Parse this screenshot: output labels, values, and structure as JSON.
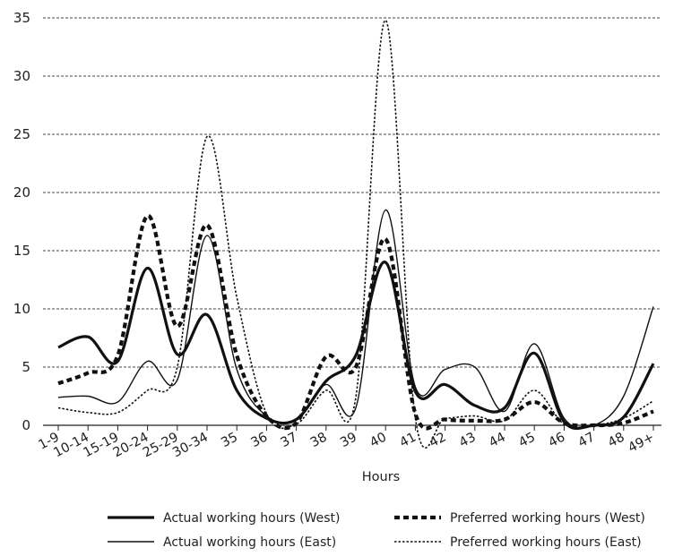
{
  "chart_data": {
    "type": "line",
    "title": "",
    "xlabel": "Hours",
    "ylabel": "",
    "ylim": [
      0,
      35
    ],
    "yticks": [
      "0",
      "5",
      "10",
      "15",
      "20",
      "25",
      "30",
      "35"
    ],
    "categories": [
      "1-9",
      "10-14",
      "15-19",
      "20-24",
      "25-29",
      "30-34",
      "35",
      "36",
      "37",
      "38",
      "39",
      "40",
      "41",
      "42",
      "43",
      "44",
      "45",
      "46",
      "47",
      "48",
      "49+"
    ],
    "grid": "horizontal dashed",
    "legend_position": "bottom",
    "series": [
      {
        "name": "Actual working hours (West)",
        "style": "thick-solid",
        "values": [
          6.7,
          7.6,
          5.5,
          13.5,
          6.1,
          9.5,
          3.0,
          0.6,
          0.5,
          3.8,
          6.0,
          14.0,
          2.9,
          3.5,
          1.7,
          1.5,
          6.2,
          0.3,
          0.0,
          0.7,
          5.3
        ]
      },
      {
        "name": "Actual working hours (East)",
        "style": "thin-solid",
        "values": [
          2.4,
          2.5,
          2.0,
          5.5,
          3.9,
          16.3,
          4.8,
          0.8,
          0.5,
          3.5,
          1.5,
          18.5,
          3.3,
          4.8,
          5.0,
          1.2,
          7.0,
          0.6,
          0.0,
          2.5,
          10.2
        ]
      },
      {
        "name": "Preferred working hours (West)",
        "style": "thick-dashed",
        "values": [
          3.6,
          4.5,
          6.0,
          18.0,
          8.5,
          17.2,
          6.0,
          0.8,
          0.2,
          5.9,
          5.0,
          16.0,
          1.0,
          0.5,
          0.4,
          0.5,
          2.0,
          0.2,
          0.0,
          0.2,
          1.2
        ]
      },
      {
        "name": "Preferred working hours (East)",
        "style": "thin-dotted",
        "values": [
          1.5,
          1.1,
          1.1,
          3.0,
          5.0,
          24.8,
          11.0,
          1.0,
          0.1,
          3.0,
          2.4,
          34.8,
          0.6,
          0.6,
          0.8,
          0.4,
          3.0,
          0.1,
          0.0,
          0.6,
          2.1
        ]
      }
    ]
  }
}
